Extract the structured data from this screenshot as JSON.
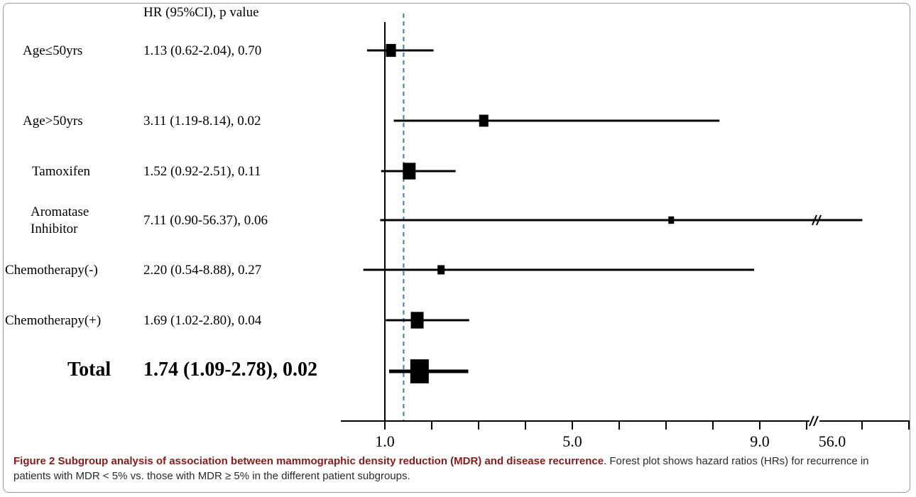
{
  "chart_data": {
    "type": "forest",
    "column_header": "HR (95%CI),  p value",
    "reference_line": 1.4,
    "null_line": 1.0,
    "rows": [
      {
        "label_lines": [
          "Age≤50yrs"
        ],
        "text": "1.13 (0.62-2.04), 0.70",
        "hr": 1.13,
        "lower": 0.62,
        "upper": 2.04,
        "bold": false
      },
      {
        "label_lines": [
          "Age>50yrs"
        ],
        "text": "3.11 (1.19-8.14), 0.02",
        "hr": 3.11,
        "lower": 1.19,
        "upper": 8.14,
        "bold": false
      },
      {
        "label_lines": [
          "Tamoxifen"
        ],
        "text": "1.52 (0.92-2.51), 0.11",
        "hr": 1.52,
        "lower": 0.92,
        "upper": 2.51,
        "bold": false
      },
      {
        "label_lines": [
          "Aromatase",
          "Inhibitor"
        ],
        "text": "7.11 (0.90-56.37), 0.06",
        "hr": 7.11,
        "lower": 0.9,
        "upper": 56.37,
        "bold": false
      },
      {
        "label_lines": [
          "Chemotherapy(-)"
        ],
        "text": "2.20 (0.54-8.88), 0.27",
        "hr": 2.2,
        "lower": 0.54,
        "upper": 8.88,
        "bold": false
      },
      {
        "label_lines": [
          "Chemotherapy(+)"
        ],
        "text": "1.69 (1.02-2.80), 0.04",
        "hr": 1.69,
        "lower": 1.02,
        "upper": 2.8,
        "bold": false
      },
      {
        "label_lines": [
          "Total"
        ],
        "text": "1.74 (1.09-2.78), 0.02",
        "hr": 1.74,
        "lower": 1.09,
        "upper": 2.78,
        "bold": true
      }
    ],
    "x_tick_labels": [
      {
        "label": "1.0",
        "value": 1.0
      },
      {
        "label": "5.0",
        "value": 5.0
      },
      {
        "label": "9.0",
        "value": 9.0
      },
      {
        "label": "56.0",
        "value": 56.0
      }
    ],
    "axis_break_after": 10.0
  },
  "caption": {
    "figure_label": "Figure 2",
    "title": "Subgroup analysis of association between mammographic density reduction (MDR) and disease recurrence",
    "body": ". Forest plot shows hazard ratios (HRs) for recurrence in patients with MDR < 5% vs. those with MDR ≥ 5% in the different patient subgroups."
  }
}
